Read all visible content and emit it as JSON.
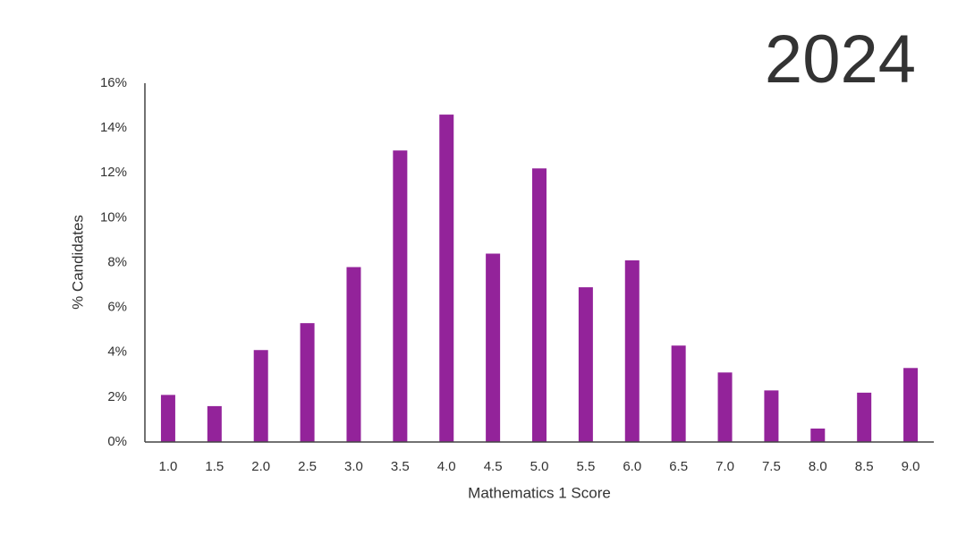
{
  "chart_data": {
    "type": "bar",
    "title": "2024",
    "x_label": "Mathematics 1 Score",
    "y_label": "% Candidates",
    "categories": [
      "1.0",
      "1.5",
      "2.0",
      "2.5",
      "3.0",
      "3.5",
      "4.0",
      "4.5",
      "5.0",
      "5.5",
      "6.0",
      "6.5",
      "7.0",
      "7.5",
      "8.0",
      "8.5",
      "9.0"
    ],
    "values": [
      2.1,
      1.6,
      4.1,
      5.3,
      7.8,
      13.0,
      14.6,
      8.4,
      12.2,
      6.9,
      8.1,
      4.3,
      3.1,
      2.3,
      0.6,
      2.2,
      3.3
    ],
    "color": "#93239a",
    "ylim": [
      0,
      16
    ],
    "yticks": [
      {
        "value": 0,
        "label": "0%"
      },
      {
        "value": 2,
        "label": "2%"
      },
      {
        "value": 4,
        "label": "4%"
      },
      {
        "value": 6,
        "label": "6%"
      },
      {
        "value": 8,
        "label": "8%"
      },
      {
        "value": 10,
        "label": "10%"
      },
      {
        "value": 12,
        "label": "12%"
      },
      {
        "value": 14,
        "label": "14%"
      },
      {
        "value": 16,
        "label": "16%"
      }
    ],
    "grid": false
  }
}
